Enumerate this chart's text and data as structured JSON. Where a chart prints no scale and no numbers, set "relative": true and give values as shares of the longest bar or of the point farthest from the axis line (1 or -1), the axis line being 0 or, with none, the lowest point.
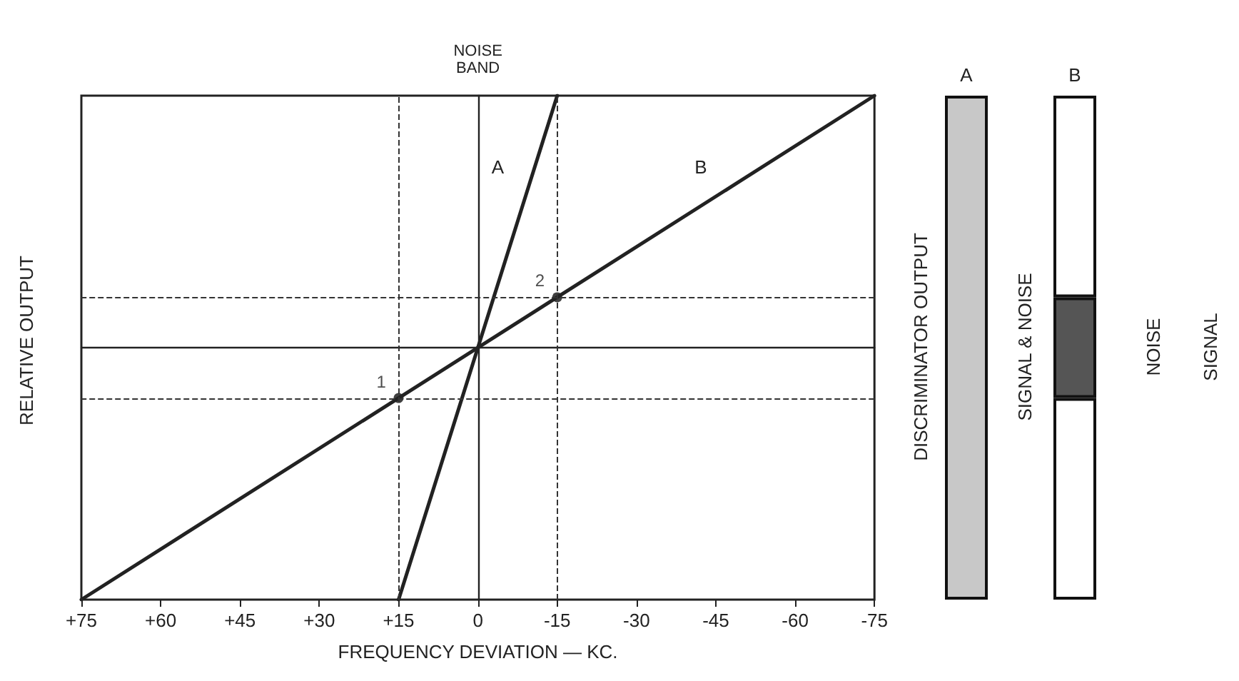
{
  "chart_data": [
    {
      "type": "line",
      "relative": true,
      "xlabel": "FREQUENCY DEVIATION — KC.",
      "ylabel": "RELATIVE OUTPUT",
      "xlim": [
        75,
        -75
      ],
      "xticks": [
        {
          "value": 75,
          "label": "+75"
        },
        {
          "value": 60,
          "label": "+60"
        },
        {
          "value": 45,
          "label": "+45"
        },
        {
          "value": 30,
          "label": "+30"
        },
        {
          "value": 15,
          "label": "+15"
        },
        0,
        -15,
        -30,
        -45,
        -60,
        -75
      ],
      "series": [
        {
          "name": "A",
          "color": "#222222",
          "x": [
            15,
            -15
          ],
          "values": [
            -1,
            1
          ]
        },
        {
          "name": "B",
          "color": "#222222",
          "x": [
            75,
            -75
          ],
          "values": [
            -1,
            1
          ]
        }
      ],
      "ref_lines": [
        {
          "axis": "x",
          "value": 15,
          "line_style": "dashed"
        },
        {
          "axis": "x",
          "value": -15,
          "line_style": "dashed"
        },
        {
          "axis": "y",
          "value": -0.2,
          "line_style": "dashed"
        },
        {
          "axis": "y",
          "value": 0.2,
          "line_style": "dashed"
        }
      ],
      "annotations": [
        "NOISE BAND",
        {
          "text": "1",
          "x": 15,
          "y": -0.2
        },
        {
          "text": "2",
          "x": -15,
          "y": 0.2
        }
      ],
      "marker": "none",
      "line_style": "solid",
      "grid": false,
      "legend": false
    },
    {
      "type": "bar",
      "relative": true,
      "stacked": true,
      "categories": [
        "A",
        "B"
      ],
      "series": [
        {
          "colors": [
            "#c8c8c8",
            "#ffffff"
          ],
          "values": [
            1,
            0.4
          ]
        },
        {
          "color": "#555555",
          "values": [
            null,
            0.2
          ]
        },
        {
          "color": "#ffffff",
          "values": [
            null,
            0.4
          ]
        }
      ],
      "annotations": [
        "DISCRIMINATOR OUTPUT",
        "SIGNAL & NOISE",
        "NOISE",
        "SIGNAL"
      ],
      "legend": false
    }
  ]
}
